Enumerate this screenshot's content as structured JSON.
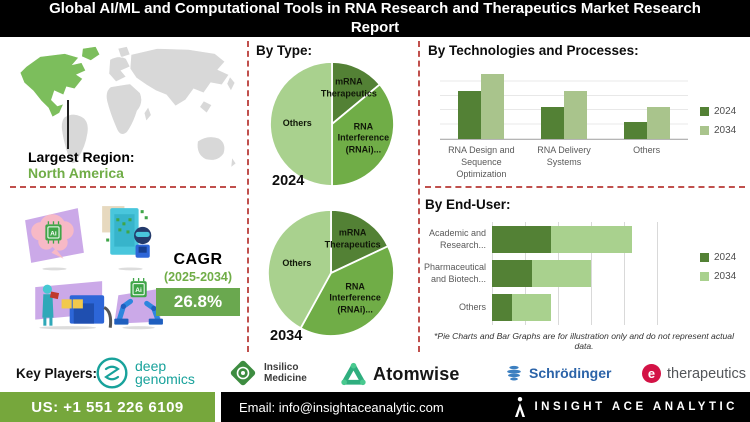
{
  "title": "Global AI/ML and Computational Tools in RNA Research and Therapeutics Market Research Report",
  "region": {
    "label": "Largest Region:",
    "value": "North America"
  },
  "cagr": {
    "label": "CAGR",
    "period": "(2025-2034)",
    "value": "26.8%"
  },
  "sections": {
    "by_type": "By Type:",
    "by_tech": "By Technologies and Processes:",
    "by_end_user": "By End-User:",
    "footnote": "*Pie Charts and Bar Graphs are for illustration only and do not represent actual data.",
    "key_players_label": "Key Players:"
  },
  "key_players": {
    "players": [
      {
        "id": "deep-genomics",
        "icon": "deep-genomics-rings-icon",
        "line1": "deep",
        "line2": "genomics"
      },
      {
        "id": "insilico-medicine",
        "icon": "insilico-diamond-icon",
        "line1": "Insilico",
        "line2": "Medicine"
      },
      {
        "id": "atomwise",
        "icon": "atomwise-triangle-icon",
        "line1": "Atomwise"
      },
      {
        "id": "schrodinger",
        "icon": "schrodinger-sphere-icon",
        "line1": "Schrödinger"
      },
      {
        "id": "e-therapeutics",
        "icon": "e-circle-icon",
        "logo_letter": "e",
        "line1": "therapeutics"
      }
    ]
  },
  "contact": {
    "phone": "US: +1 551 226 6109",
    "email": "Email: info@insightaceanalytic.com",
    "brand": "INSIGHT ACE ANALYTIC"
  },
  "colors": {
    "accent_dark_green": "#538135",
    "accent_mid_green": "#70AD47",
    "accent_light_green": "#A9D18E",
    "map_highlight_green": "#7CBE5C",
    "divider_red": "#C0504D",
    "phone_bar_green": "#76A73C",
    "cagr_box_green": "#6AA84F",
    "title_bar_black": "#000000"
  },
  "chart_data": [
    {
      "id": "by-type-2024",
      "type": "pie",
      "title": "2024",
      "labels": [
        "mRNA Therapeutics",
        "RNA Interference (RNAi)...",
        "Others"
      ],
      "values": [
        14,
        36,
        50
      ],
      "colors": [
        "#538135",
        "#70AD47",
        "#A9D18E"
      ],
      "labels_inside": true
    },
    {
      "id": "by-type-2034",
      "type": "pie",
      "title": "2034",
      "labels": [
        "mRNA Therapeutics",
        "RNA Interference (RNAi)...",
        "Others"
      ],
      "values": [
        18,
        40,
        42
      ],
      "colors": [
        "#538135",
        "#70AD47",
        "#A9D18E"
      ],
      "labels_inside": true
    },
    {
      "id": "by-technologies-and-processes",
      "type": "bar",
      "title": "By Technologies and Processes:",
      "categories": [
        "RNA Design and Sequence Optimization",
        "RNA Delivery Systems",
        "Others"
      ],
      "series": [
        {
          "name": "2024",
          "values": [
            75,
            50,
            27
          ],
          "color": "#538135"
        },
        {
          "name": "2034",
          "values": [
            100,
            75,
            50
          ],
          "color": "#A9C48C"
        }
      ],
      "ylim": [
        0,
        110
      ],
      "grid": true,
      "legend_position": "right"
    },
    {
      "id": "by-end-user",
      "type": "bar-horizontal-stacked",
      "title": "By End-User:",
      "categories": [
        "Academic and Research...",
        "Pharmaceutical and Biotech...",
        "Others"
      ],
      "series": [
        {
          "name": "2024",
          "values": [
            1.8,
            1.2,
            0.6
          ],
          "color": "#538135"
        },
        {
          "name": "2034",
          "values": [
            2.45,
            1.8,
            1.2
          ],
          "color": "#A9D18E"
        }
      ],
      "xlim": [
        0,
        6
      ],
      "grid": true,
      "legend_position": "right"
    }
  ]
}
